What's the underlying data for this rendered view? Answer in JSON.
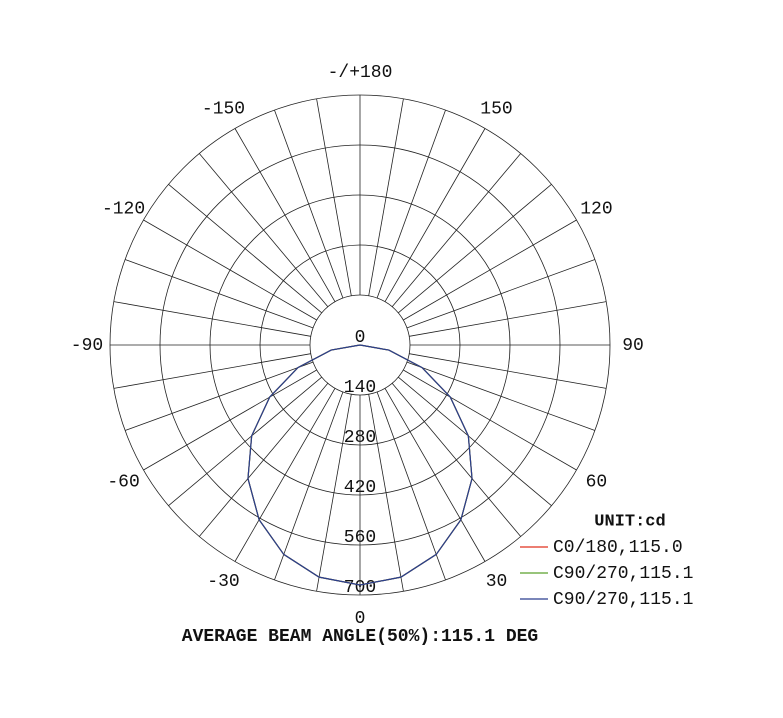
{
  "chart_data": {
    "type": "polar",
    "theta": [
      -90,
      -80,
      -70,
      -60,
      -50,
      -40,
      -30,
      -20,
      -10,
      0,
      10,
      20,
      30,
      40,
      50,
      60,
      70,
      80,
      90
    ],
    "series": [
      {
        "name": "C0/180,115.0",
        "color": "#e0301e",
        "values": [
          0,
          82,
          185,
          292,
          396,
          488,
          565,
          624,
          660,
          672,
          660,
          624,
          565,
          488,
          396,
          292,
          185,
          82,
          0
        ]
      },
      {
        "name": "C90/270,115.1",
        "color": "#5aa02c",
        "values": [
          0,
          82,
          185,
          292,
          396,
          488,
          565,
          624,
          660,
          672,
          660,
          624,
          565,
          488,
          396,
          292,
          185,
          82,
          0
        ]
      },
      {
        "name": "C90/270,115.1",
        "color": "#2a3d8f",
        "values": [
          0,
          82,
          185,
          292,
          396,
          488,
          565,
          624,
          660,
          672,
          660,
          624,
          565,
          488,
          396,
          292,
          185,
          82,
          0
        ]
      }
    ],
    "rlim": [
      0,
      700
    ],
    "rticks": [
      0,
      140,
      280,
      420,
      560,
      700
    ],
    "thetaticks": [
      0,
      30,
      60,
      90,
      120,
      150,
      {
        "value": 180,
        "label": "-/+180"
      },
      -150,
      -120,
      -90,
      -60,
      -30
    ],
    "legend_title": "UNIT:cd",
    "annotation": "AVERAGE BEAM ANGLE(50%):115.1 DEG",
    "legend": "bottom-right",
    "grid": true
  }
}
